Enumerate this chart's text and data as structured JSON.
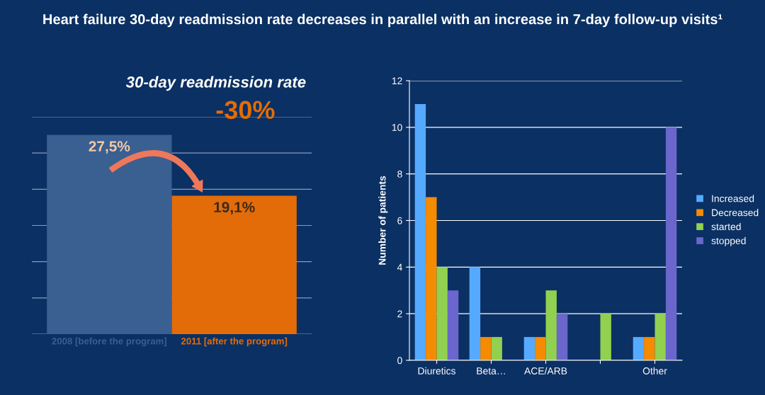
{
  "chart_data": [
    {
      "type": "bar",
      "title": "Heart failure 30-day readmission rate decreases in parallel with an increase in 7-day follow-up visits¹",
      "subtitle": "30-day readmission rate",
      "categories": [
        "2008 [before the program]",
        "2011 [after the program]"
      ],
      "values": [
        27.5,
        19.1
      ],
      "value_labels": [
        "27,5%",
        "19,1%"
      ],
      "colors": [
        "#3a5f91",
        "#e36c09"
      ],
      "ylim": [
        0,
        30
      ],
      "yticks": [
        {
          "value": 0,
          "label": null
        },
        {
          "value": 5,
          "label": null
        },
        {
          "value": 10,
          "label": null
        },
        {
          "value": 15,
          "label": null
        },
        {
          "value": 20,
          "label": null
        },
        {
          "value": 25,
          "label": null
        },
        {
          "value": 30,
          "label": null
        }
      ],
      "grid": "y",
      "tick_labels": "x",
      "annotations": [
        "-30%"
      ]
    },
    {
      "type": "bar",
      "categories": [
        "Diuretics",
        "Beta…",
        "ACE/ARB",
        null,
        "Other"
      ],
      "ylabel": "Number of patients",
      "series": [
        {
          "name": "Increased",
          "color": "#55aaff",
          "values": [
            11,
            4,
            1,
            0,
            1
          ]
        },
        {
          "name": "Decreased",
          "color": "#f58b00",
          "values": [
            7,
            1,
            1,
            0,
            1
          ]
        },
        {
          "name": "started",
          "color": "#92d050",
          "values": [
            4,
            1,
            3,
            2,
            2
          ]
        },
        {
          "name": "stopped",
          "color": "#6a66cc",
          "values": [
            3,
            0,
            2,
            0,
            10
          ]
        }
      ],
      "ylim": [
        0,
        12
      ],
      "yticks": [
        0,
        2,
        4,
        6,
        8,
        10,
        12
      ],
      "grid": "y",
      "legend": "right"
    }
  ]
}
